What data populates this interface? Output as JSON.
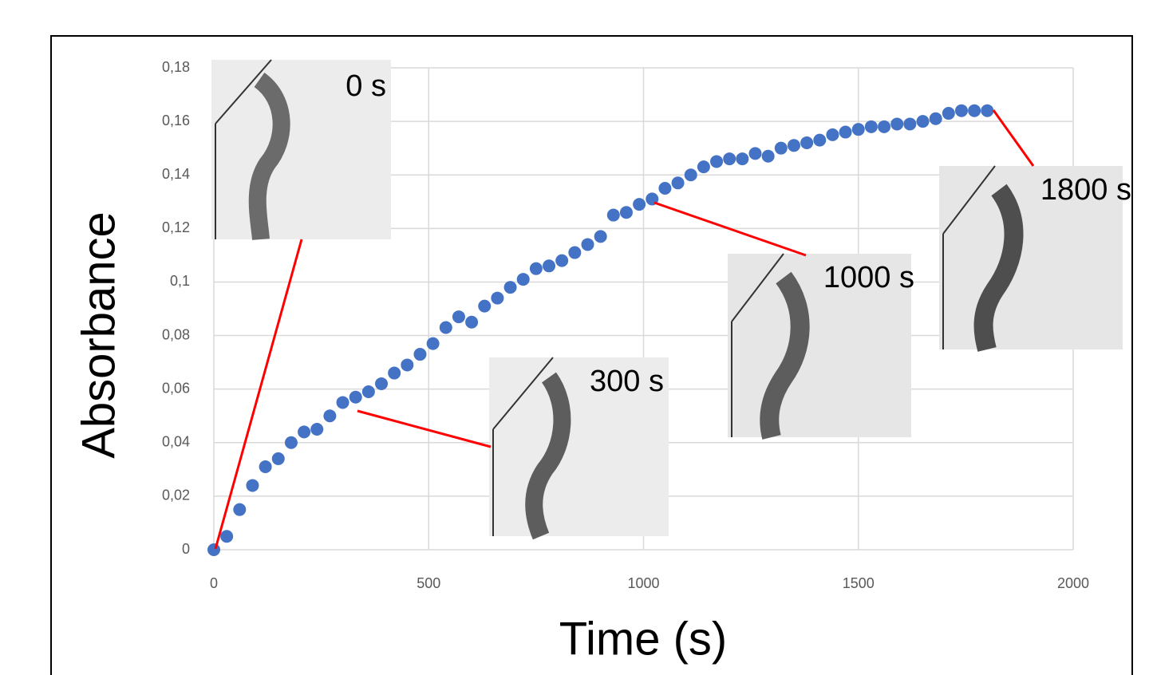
{
  "chart_data": {
    "type": "scatter",
    "x_label": "Time (s)",
    "y_label": "Absorbance",
    "xlim": [
      0,
      2000
    ],
    "xticks": [
      0,
      500,
      1000,
      1500,
      2000
    ],
    "ylim": [
      0,
      0.18
    ],
    "yticks": [
      0,
      {
        "value": 0.02,
        "label": "0,02"
      },
      {
        "value": 0.04,
        "label": "0,04"
      },
      {
        "value": 0.06,
        "label": "0,06"
      },
      {
        "value": 0.08,
        "label": "0,08"
      },
      {
        "value": 0.1,
        "label": "0,1"
      },
      {
        "value": 0.12,
        "label": "0,12"
      },
      {
        "value": 0.14,
        "label": "0,14"
      },
      {
        "value": 0.16,
        "label": "0,16"
      },
      {
        "value": 0.18,
        "label": "0,18"
      }
    ],
    "grid": true,
    "color": "#4472c4",
    "x": [
      0,
      30,
      60,
      90,
      120,
      150,
      180,
      210,
      240,
      270,
      300,
      330,
      360,
      390,
      420,
      450,
      480,
      510,
      540,
      570,
      600,
      630,
      660,
      690,
      720,
      750,
      780,
      810,
      840,
      870,
      900,
      930,
      960,
      990,
      1020,
      1050,
      1080,
      1110,
      1140,
      1170,
      1200,
      1230,
      1260,
      1290,
      1320,
      1350,
      1380,
      1410,
      1440,
      1470,
      1500,
      1530,
      1560,
      1590,
      1620,
      1650,
      1680,
      1710,
      1740,
      1770,
      1800
    ],
    "values": [
      0,
      0.005,
      0.015,
      0.024,
      0.031,
      0.034,
      0.04,
      0.044,
      0.045,
      0.05,
      0.055,
      0.057,
      0.059,
      0.062,
      0.066,
      0.069,
      0.073,
      0.077,
      0.083,
      0.087,
      0.085,
      0.091,
      0.094,
      0.098,
      0.101,
      0.105,
      0.106,
      0.108,
      0.111,
      0.114,
      0.117,
      0.125,
      0.126,
      0.129,
      0.131,
      0.135,
      0.137,
      0.14,
      0.143,
      0.145,
      0.146,
      0.146,
      0.148,
      0.147,
      0.15,
      0.151,
      0.152,
      0.153,
      0.155,
      0.156,
      0.157,
      0.158,
      0.158,
      0.159,
      0.159,
      0.16,
      0.161,
      0.163,
      0.164,
      0.164,
      0.164
    ],
    "annotations": [
      "0 s",
      "300 s",
      "1000 s",
      "1800 s"
    ]
  }
}
